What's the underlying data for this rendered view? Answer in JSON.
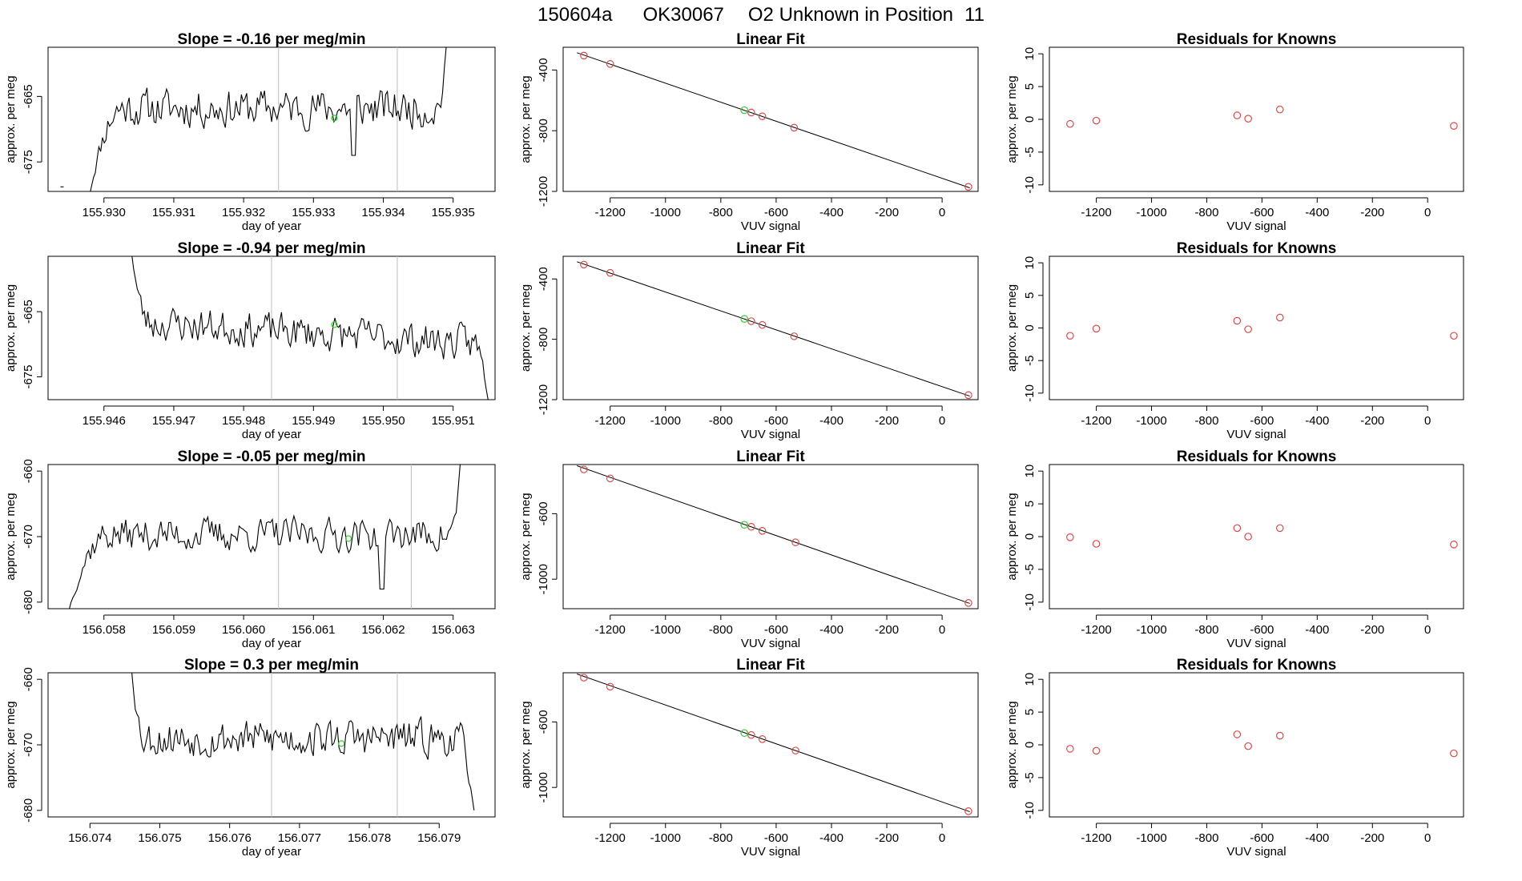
{
  "main_title": {
    "run": "150604a",
    "tank": "OK30067",
    "label": "O2 Unknown in Position",
    "position": "11"
  },
  "colors": {
    "known_points": "#d94a4a",
    "unknown_point": "#33cc33",
    "trace": "#000000",
    "gridline": "#bdbdbd"
  },
  "chart_data": [
    {
      "type": "line",
      "row": 1,
      "title": "Slope =  -0.16  per meg/min",
      "xlabel": "day of year",
      "ylabel": "approx. per meg",
      "xlim": [
        155.9292,
        155.9356
      ],
      "ylim": [
        -679.5,
        -657.5
      ],
      "xticks": [
        155.93,
        155.931,
        155.932,
        155.933,
        155.934,
        155.935
      ],
      "xtick_labels": [
        "155.930",
        "155.931",
        "155.932",
        "155.933",
        "155.934",
        "155.935"
      ],
      "yticks": [
        -665,
        -675
      ],
      "ytick_labels": [
        "-665",
        "-675"
      ],
      "markers": [
        155.9325,
        155.9342
      ],
      "trace": {
        "x_start": 155.9298,
        "x_end": 155.9349,
        "seed": 11,
        "mean": -666.8,
        "amp": 2.6,
        "start_y": -679.8,
        "rise_frac": 0.09,
        "end_y": -657.5,
        "end_frac": 0.025,
        "dip": [
          0.74,
          -674
        ]
      },
      "green_point": {
        "x": 155.9333,
        "y": -668.3
      },
      "stray_point": {
        "x": 155.9294,
        "y": -678.8
      }
    },
    {
      "type": "scatter",
      "row": 1,
      "title": "Linear Fit",
      "xlabel": "VUV signal",
      "ylabel": "approx. per meg",
      "xlim": [
        -1370,
        130
      ],
      "ylim": [
        -1200,
        -250
      ],
      "xticks": [
        -1200,
        -1000,
        -800,
        -600,
        -400,
        -200,
        0
      ],
      "xtick_labels": [
        "-1200",
        "-1000",
        "-800",
        "-600",
        "-400",
        "-200",
        "0"
      ],
      "yticks": [
        -400,
        -800,
        -1200
      ],
      "ytick_labels": [
        "-400",
        "-800",
        "-1200"
      ],
      "points": [
        {
          "x": -1295,
          "y": -305
        },
        {
          "x": -1200,
          "y": -360
        },
        {
          "x": -690,
          "y": -680
        },
        {
          "x": -650,
          "y": -705
        },
        {
          "x": -535,
          "y": -780
        },
        {
          "x": 95,
          "y": -1170
        }
      ],
      "unknown": {
        "x": -715,
        "y": -665
      },
      "fit": {
        "slope": -0.627,
        "intercept": -1113.7,
        "x_from": -1320,
        "x_to": 100
      }
    },
    {
      "type": "scatter",
      "row": 1,
      "title": "Residuals for Knowns",
      "xlabel": "VUV signal",
      "ylabel": "approx. per meg",
      "xlim": [
        -1370,
        130
      ],
      "ylim": [
        -11,
        11
      ],
      "xticks": [
        -1200,
        -1000,
        -800,
        -600,
        -400,
        -200,
        0
      ],
      "xtick_labels": [
        "-1200",
        "-1000",
        "-800",
        "-600",
        "-400",
        "-200",
        "0"
      ],
      "yticks": [
        10,
        5,
        0,
        -5,
        -10
      ],
      "ytick_labels": [
        "10",
        "5",
        "0",
        "-5",
        "-10"
      ],
      "points": [
        {
          "x": -1295,
          "y": -0.7
        },
        {
          "x": -1200,
          "y": -0.2
        },
        {
          "x": -690,
          "y": 0.6
        },
        {
          "x": -650,
          "y": 0.1
        },
        {
          "x": -535,
          "y": 1.5
        },
        {
          "x": 95,
          "y": -1.0
        }
      ]
    },
    {
      "type": "line",
      "row": 2,
      "title": "Slope =  -0.94  per meg/min",
      "xlabel": "day of year",
      "ylabel": "approx. per meg",
      "xlim": [
        155.9452,
        155.9516
      ],
      "ylim": [
        -678.5,
        -656.5
      ],
      "xticks": [
        155.946,
        155.947,
        155.948,
        155.949,
        155.95,
        155.951
      ],
      "xtick_labels": [
        "155.946",
        "155.947",
        "155.948",
        "155.949",
        "155.950",
        "155.951"
      ],
      "yticks": [
        -665,
        -675
      ],
      "ytick_labels": [
        "-665",
        "-675"
      ],
      "markers": [
        155.9484,
        155.9502
      ],
      "trace": {
        "x_start": 155.9464,
        "x_end": 155.9515,
        "seed": 23,
        "mean": -666.5,
        "amp": 2.4,
        "start_y": -656.3,
        "rise_frac": 0.05,
        "drift": -3.5,
        "end_y": -678.5,
        "end_frac": 0.04
      },
      "green_point": {
        "x": 155.9493,
        "y": -667.0
      }
    },
    {
      "type": "scatter",
      "row": 2,
      "title": "Linear Fit",
      "xlabel": "VUV signal",
      "ylabel": "approx. per meg",
      "xlim": [
        -1370,
        130
      ],
      "ylim": [
        -1200,
        -250
      ],
      "xticks": [
        -1200,
        -1000,
        -800,
        -600,
        -400,
        -200,
        0
      ],
      "xtick_labels": [
        "-1200",
        "-1000",
        "-800",
        "-600",
        "-400",
        "-200",
        "0"
      ],
      "yticks": [
        -400,
        -800,
        -1200
      ],
      "ytick_labels": [
        "-400",
        "-800",
        "-1200"
      ],
      "points": [
        {
          "x": -1295,
          "y": -305
        },
        {
          "x": -1200,
          "y": -360
        },
        {
          "x": -690,
          "y": -680
        },
        {
          "x": -650,
          "y": -705
        },
        {
          "x": -535,
          "y": -780
        },
        {
          "x": 95,
          "y": -1170
        }
      ],
      "unknown": {
        "x": -715,
        "y": -665
      },
      "fit": {
        "slope": -0.627,
        "intercept": -1113.7,
        "x_from": -1320,
        "x_to": 100
      }
    },
    {
      "type": "scatter",
      "row": 2,
      "title": "Residuals for Knowns",
      "xlabel": "VUV signal",
      "ylabel": "approx. per meg",
      "xlim": [
        -1370,
        130
      ],
      "ylim": [
        -11,
        11
      ],
      "xticks": [
        -1200,
        -1000,
        -800,
        -600,
        -400,
        -200,
        0
      ],
      "xtick_labels": [
        "-1200",
        "-1000",
        "-800",
        "-600",
        "-400",
        "-200",
        "0"
      ],
      "yticks": [
        10,
        5,
        0,
        -5,
        -10
      ],
      "ytick_labels": [
        "10",
        "5",
        "0",
        "-5",
        "-10"
      ],
      "points": [
        {
          "x": -1295,
          "y": -1.2
        },
        {
          "x": -1200,
          "y": -0.1
        },
        {
          "x": -690,
          "y": 1.1
        },
        {
          "x": -650,
          "y": -0.2
        },
        {
          "x": -535,
          "y": 1.6
        },
        {
          "x": 95,
          "y": -1.2
        }
      ]
    },
    {
      "type": "line",
      "row": 3,
      "title": "Slope =  -0.05  per meg/min",
      "xlabel": "day of year",
      "ylabel": "approx. per meg",
      "xlim": [
        156.0572,
        156.0636
      ],
      "ylim": [
        -681,
        -659
      ],
      "xticks": [
        156.058,
        156.059,
        156.06,
        156.061,
        156.062,
        156.063
      ],
      "xtick_labels": [
        "156.058",
        "156.059",
        "156.060",
        "156.061",
        "156.062",
        "156.063"
      ],
      "yticks": [
        -660,
        -670,
        -680
      ],
      "ytick_labels": [
        "-660",
        "-670",
        "-680"
      ],
      "markers": [
        156.0605,
        156.0624
      ],
      "trace": {
        "x_start": 156.0575,
        "x_end": 156.0631,
        "seed": 37,
        "mean": -669.7,
        "amp": 2.3,
        "start_y": -681.2,
        "rise_frac": 0.1,
        "end_y": -659.0,
        "end_frac": 0.025,
        "dip": [
          0.8,
          -678
        ]
      },
      "green_point": {
        "x": 156.0615,
        "y": -670.3
      }
    },
    {
      "type": "scatter",
      "row": 3,
      "title": "Linear Fit",
      "xlabel": "VUV signal",
      "ylabel": "approx. per meg",
      "xlim": [
        -1370,
        130
      ],
      "ylim": [
        -1180,
        -300
      ],
      "xticks": [
        -1200,
        -1000,
        -800,
        -600,
        -400,
        -200,
        0
      ],
      "xtick_labels": [
        "-1200",
        "-1000",
        "-800",
        "-600",
        "-400",
        "-200",
        "0"
      ],
      "yticks": [
        -600,
        -1000
      ],
      "ytick_labels": [
        "-600",
        "-1000"
      ],
      "points": [
        {
          "x": -1295,
          "y": -330
        },
        {
          "x": -1200,
          "y": -385
        },
        {
          "x": -690,
          "y": -680
        },
        {
          "x": -650,
          "y": -705
        },
        {
          "x": -530,
          "y": -775
        },
        {
          "x": 95,
          "y": -1145
        }
      ],
      "unknown": {
        "x": -715,
        "y": -668
      },
      "fit": {
        "slope": -0.592,
        "intercept": -1088.8,
        "x_from": -1320,
        "x_to": 100
      }
    },
    {
      "type": "scatter",
      "row": 3,
      "title": "Residuals for Knowns",
      "xlabel": "VUV signal",
      "ylabel": "approx. per meg",
      "xlim": [
        -1370,
        130
      ],
      "ylim": [
        -11,
        11
      ],
      "xticks": [
        -1200,
        -1000,
        -800,
        -600,
        -400,
        -200,
        0
      ],
      "xtick_labels": [
        "-1200",
        "-1000",
        "-800",
        "-600",
        "-400",
        "-200",
        "0"
      ],
      "yticks": [
        10,
        5,
        0,
        -5,
        -10
      ],
      "ytick_labels": [
        "10",
        "5",
        "0",
        "-5",
        "-10"
      ],
      "points": [
        {
          "x": -1295,
          "y": -0.1
        },
        {
          "x": -1200,
          "y": -1.1
        },
        {
          "x": -690,
          "y": 1.3
        },
        {
          "x": -650,
          "y": 0.0
        },
        {
          "x": -535,
          "y": 1.3
        },
        {
          "x": 95,
          "y": -1.2
        }
      ]
    },
    {
      "type": "line",
      "row": 4,
      "title": "Slope =  0.3  per meg/min",
      "xlabel": "day of year",
      "ylabel": "approx. per meg",
      "xlim": [
        156.0734,
        156.0798
      ],
      "ylim": [
        -681,
        -659
      ],
      "xticks": [
        156.074,
        156.075,
        156.076,
        156.077,
        156.078,
        156.079
      ],
      "xtick_labels": [
        "156.074",
        "156.075",
        "156.076",
        "156.077",
        "156.078",
        "156.079"
      ],
      "yticks": [
        -660,
        -670,
        -680
      ],
      "ytick_labels": [
        "-660",
        "-670",
        "-680"
      ],
      "markers": [
        156.0766,
        156.0784
      ],
      "trace": {
        "x_start": 156.0746,
        "x_end": 156.0795,
        "seed": 53,
        "mean": -669.0,
        "amp": 2.5,
        "start_y": -659.0,
        "rise_frac": 0.04,
        "end_y": -680.0,
        "end_frac": 0.05
      },
      "green_point": {
        "x": 156.0776,
        "y": -669.8
      }
    },
    {
      "type": "scatter",
      "row": 4,
      "title": "Linear Fit",
      "xlabel": "VUV signal",
      "ylabel": "approx. per meg",
      "xlim": [
        -1370,
        130
      ],
      "ylim": [
        -1180,
        -300
      ],
      "xticks": [
        -1200,
        -1000,
        -800,
        -600,
        -400,
        -200,
        0
      ],
      "xtick_labels": [
        "-1200",
        "-1000",
        "-800",
        "-600",
        "-400",
        "-200",
        "0"
      ],
      "yticks": [
        -600,
        -1000
      ],
      "ytick_labels": [
        "-600",
        "-1000"
      ],
      "points": [
        {
          "x": -1295,
          "y": -330
        },
        {
          "x": -1200,
          "y": -385
        },
        {
          "x": -690,
          "y": -680
        },
        {
          "x": -650,
          "y": -705
        },
        {
          "x": -530,
          "y": -775
        },
        {
          "x": 95,
          "y": -1145
        }
      ],
      "unknown": {
        "x": -715,
        "y": -668
      },
      "fit": {
        "slope": -0.592,
        "intercept": -1088.8,
        "x_from": -1320,
        "x_to": 100
      }
    },
    {
      "type": "scatter",
      "row": 4,
      "title": "Residuals for Knowns",
      "xlabel": "VUV signal",
      "ylabel": "approx. per meg",
      "xlim": [
        -1370,
        130
      ],
      "ylim": [
        -11,
        11
      ],
      "xticks": [
        -1200,
        -1000,
        -800,
        -600,
        -400,
        -200,
        0
      ],
      "xtick_labels": [
        "-1200",
        "-1000",
        "-800",
        "-600",
        "-400",
        "-200",
        "0"
      ],
      "yticks": [
        10,
        5,
        0,
        -5,
        -10
      ],
      "ytick_labels": [
        "10",
        "5",
        "0",
        "-5",
        "-10"
      ],
      "points": [
        {
          "x": -1295,
          "y": -0.6
        },
        {
          "x": -1200,
          "y": -0.9
        },
        {
          "x": -690,
          "y": 1.6
        },
        {
          "x": -650,
          "y": -0.2
        },
        {
          "x": -535,
          "y": 1.4
        },
        {
          "x": 95,
          "y": -1.3
        }
      ]
    }
  ]
}
